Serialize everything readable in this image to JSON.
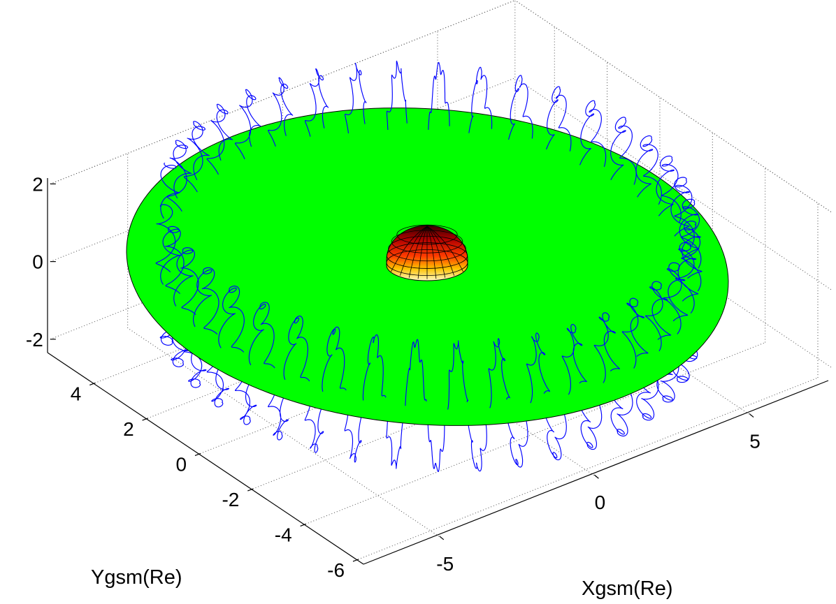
{
  "chart_data": {
    "type": "line3d",
    "title": "",
    "xlabel": "Xgsm(Re)",
    "ylabel": "Ygsm(Re)",
    "zlabel": "",
    "x_ticks": [
      -5,
      0,
      5
    ],
    "y_ticks": [
      -6,
      -4,
      -2,
      0,
      2,
      4
    ],
    "z_ticks": [
      -2,
      0,
      2
    ],
    "xlim": [
      -7.5,
      7.5
    ],
    "ylim": [
      -6.5,
      5.5
    ],
    "zlim": [
      -2.5,
      2.0
    ],
    "grid": true,
    "surfaces": [
      {
        "name": "",
        "shape": "disk",
        "z": 0,
        "radius": 7.4,
        "color": "#00ff00"
      },
      {
        "name": "",
        "shape": "hemisphere",
        "center": [
          0,
          0,
          0
        ],
        "radius": 1,
        "colormap": "hot"
      }
    ],
    "series": [
      {
        "name": "",
        "color": "#0000ff",
        "description_values": {
          "guiding_center_radius": 6.5,
          "bounce_amplitude_z": 1.6,
          "gyro_radius": 0.25,
          "bounce_periods": 38,
          "drift_turns": 0.95
        }
      }
    ]
  }
}
